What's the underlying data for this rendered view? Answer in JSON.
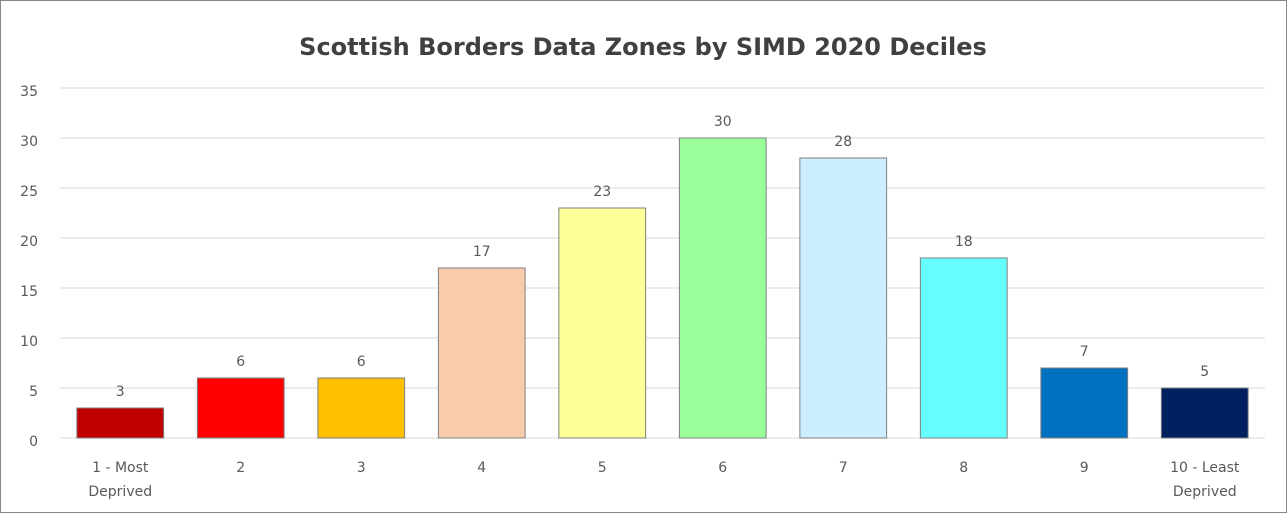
{
  "chart_data": {
    "type": "bar",
    "title": "Scottish Borders Data Zones by SIMD 2020 Deciles",
    "categories": [
      "1 - Most Deprived",
      "2",
      "3",
      "4",
      "5",
      "6",
      "7",
      "8",
      "9",
      "10 - Least Deprived"
    ],
    "values": [
      3,
      6,
      6,
      17,
      23,
      30,
      28,
      18,
      7,
      5
    ],
    "colors": [
      "#c00000",
      "#ff0000",
      "#ffc000",
      "#f8cbad",
      "#ffff99",
      "#99ff99",
      "#cceeff",
      "#66ffff",
      "#0070c0",
      "#002060"
    ],
    "ylim": [
      0,
      35
    ],
    "yticks": [
      0,
      5,
      10,
      15,
      20,
      25,
      30,
      35
    ],
    "grid": true
  }
}
